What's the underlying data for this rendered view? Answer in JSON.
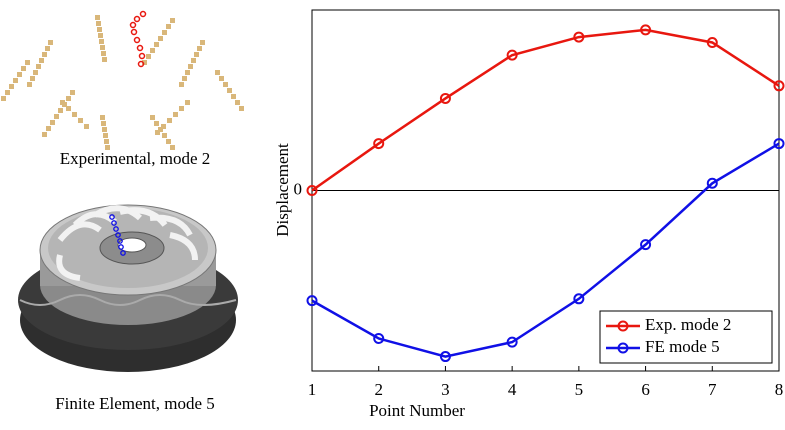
{
  "figures": [
    {
      "caption": "Experimental, mode 2"
    },
    {
      "caption": "Finite Element, mode 5"
    }
  ],
  "chart_data": {
    "type": "line",
    "x_label": "Point Number",
    "y_label": "Displacement",
    "x": [
      1,
      2,
      3,
      4,
      5,
      6,
      7,
      8
    ],
    "xlim": [
      1,
      8
    ],
    "xticks": [
      1,
      2,
      3,
      4,
      5,
      6,
      7,
      8
    ],
    "ylim": [
      -1,
      1
    ],
    "yticks": [
      0
    ],
    "legend": "lower right",
    "series": [
      {
        "name": "Exp. mode 2",
        "color": "#e8170f",
        "values": [
          0.0,
          0.26,
          0.51,
          0.75,
          0.85,
          0.89,
          0.82,
          0.58
        ]
      },
      {
        "name": "FE mode 5",
        "color": "#1010e6",
        "values": [
          -0.61,
          -0.82,
          -0.92,
          -0.84,
          -0.6,
          -0.3,
          0.04,
          0.26
        ]
      }
    ]
  }
}
